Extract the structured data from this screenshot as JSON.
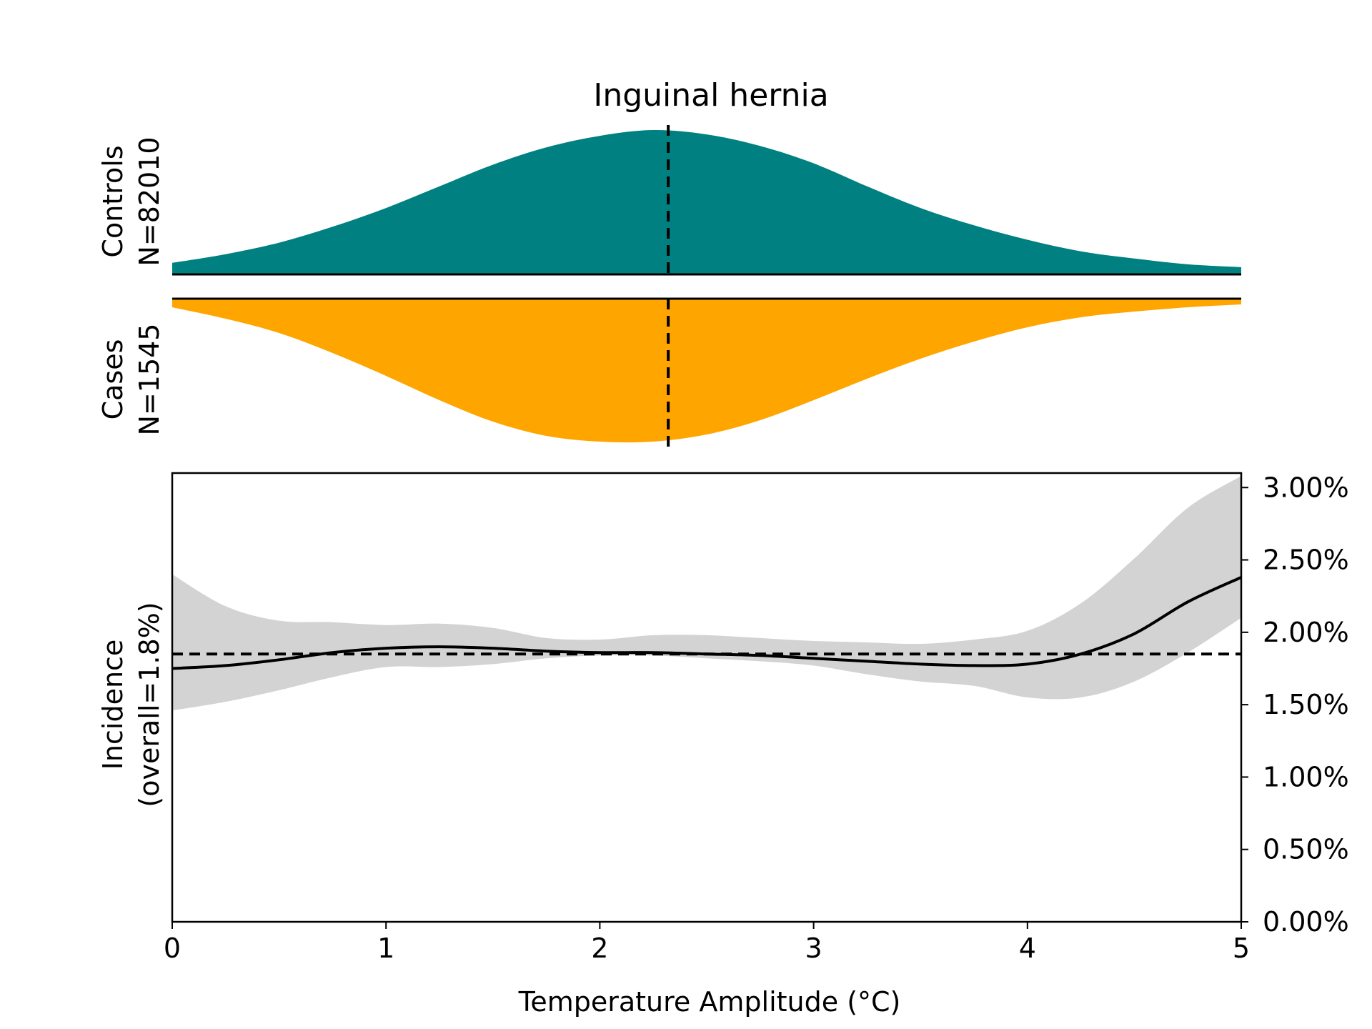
{
  "chart_data": {
    "type": "area",
    "title": "Inguinal hernia",
    "xlabel": "Temperature Amplitude (°C)",
    "xlim": [
      0,
      5
    ],
    "xticks": [
      "0",
      "1",
      "2",
      "3",
      "4",
      "5"
    ],
    "median_x": 2.32,
    "colors": {
      "controls": "#008080",
      "cases": "#FFA500",
      "ci_band": "#D3D3D3",
      "line": "#000000"
    },
    "controls": {
      "label_line1": "Controls",
      "label_line2": "N=82010",
      "x": [
        0,
        0.25,
        0.5,
        0.75,
        1.0,
        1.25,
        1.5,
        1.75,
        2.0,
        2.25,
        2.5,
        2.75,
        3.0,
        3.25,
        3.5,
        3.75,
        4.0,
        4.25,
        4.5,
        4.75,
        5.0
      ],
      "density": [
        0.08,
        0.14,
        0.22,
        0.33,
        0.46,
        0.61,
        0.76,
        0.88,
        0.96,
        1.0,
        0.97,
        0.89,
        0.77,
        0.61,
        0.46,
        0.34,
        0.24,
        0.16,
        0.11,
        0.07,
        0.05
      ]
    },
    "cases": {
      "label_line1": "Cases",
      "label_line2": "N=1545",
      "x": [
        0,
        0.25,
        0.5,
        0.75,
        1.0,
        1.25,
        1.5,
        1.75,
        2.0,
        2.25,
        2.5,
        2.75,
        3.0,
        3.25,
        3.5,
        3.75,
        4.0,
        4.25,
        4.5,
        4.75,
        5.0
      ],
      "density": [
        0.06,
        0.14,
        0.24,
        0.38,
        0.54,
        0.71,
        0.86,
        0.96,
        1.0,
        1.0,
        0.95,
        0.85,
        0.71,
        0.56,
        0.42,
        0.3,
        0.2,
        0.13,
        0.09,
        0.06,
        0.04
      ]
    },
    "incidence": {
      "ylabel_line1": "Incidence",
      "ylabel_line2": "(overall=1.8%)",
      "ylim": [
        0,
        3.1
      ],
      "yticks": [
        "0.00%",
        "0.50%",
        "1.00%",
        "1.50%",
        "2.00%",
        "2.50%",
        "3.00%"
      ],
      "overall": 1.85,
      "x": [
        0,
        0.25,
        0.5,
        0.75,
        1.0,
        1.25,
        1.5,
        1.75,
        2.0,
        2.25,
        2.5,
        2.75,
        3.0,
        3.25,
        3.5,
        3.75,
        4.0,
        4.25,
        4.5,
        4.75,
        5.0
      ],
      "y": [
        1.75,
        1.77,
        1.81,
        1.86,
        1.89,
        1.9,
        1.89,
        1.87,
        1.86,
        1.86,
        1.85,
        1.84,
        1.82,
        1.8,
        1.78,
        1.77,
        1.78,
        1.85,
        1.99,
        2.21,
        2.38
      ],
      "lower": [
        1.46,
        1.52,
        1.6,
        1.69,
        1.76,
        1.76,
        1.78,
        1.82,
        1.84,
        1.84,
        1.82,
        1.8,
        1.77,
        1.71,
        1.66,
        1.63,
        1.55,
        1.55,
        1.66,
        1.86,
        2.1
      ],
      "upper": [
        2.4,
        2.18,
        2.08,
        2.07,
        2.05,
        2.06,
        2.03,
        1.96,
        1.95,
        1.98,
        1.98,
        1.96,
        1.94,
        1.93,
        1.92,
        1.95,
        2.01,
        2.2,
        2.51,
        2.86,
        3.08
      ]
    }
  }
}
